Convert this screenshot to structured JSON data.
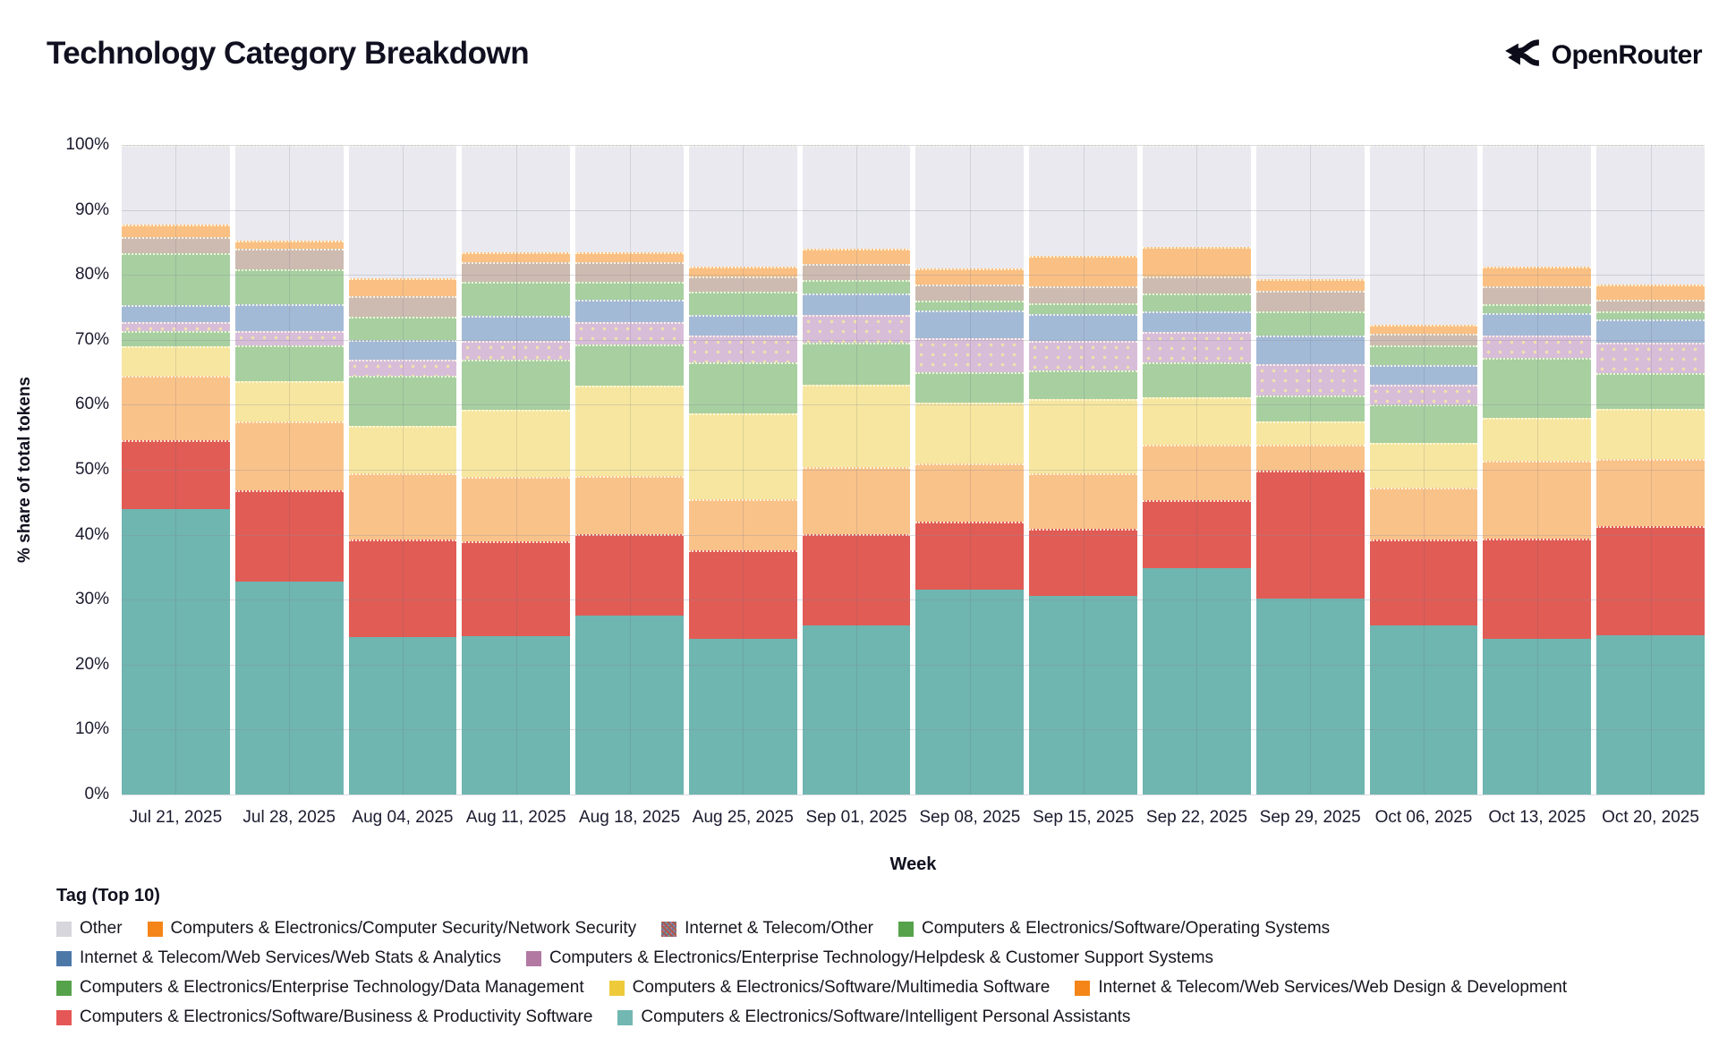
{
  "header": {
    "title": "Technology Category Breakdown",
    "brand": "OpenRouter"
  },
  "chart_data": {
    "type": "bar",
    "stacked": true,
    "unit": "% share of total tokens",
    "title": "Technology Category Breakdown",
    "xlabel": "Week",
    "ylabel": "% share of total tokens",
    "ylim": [
      0,
      100
    ],
    "yticks": [
      "0%",
      "10%",
      "20%",
      "30%",
      "40%",
      "50%",
      "60%",
      "70%",
      "80%",
      "90%",
      "100%"
    ],
    "grid": true,
    "legend_title": "Tag (Top 10)",
    "legend_position": "bottom",
    "categories": [
      "Jul 21, 2025",
      "Jul 28, 2025",
      "Aug 04, 2025",
      "Aug 11, 2025",
      "Aug 18, 2025",
      "Aug 25, 2025",
      "Sep 01, 2025",
      "Sep 08, 2025",
      "Sep 15, 2025",
      "Sep 22, 2025",
      "Sep 29, 2025",
      "Oct 06, 2025",
      "Oct 13, 2025",
      "Oct 20, 2025"
    ],
    "series": [
      {
        "id": "ipa",
        "name": "Computers & Electronics/Software/Intelligent Personal Assistants",
        "bar_color": "#6FB5B0",
        "legend_color": "#72B7B2",
        "pattern": "none",
        "values": [
          44.0,
          32.8,
          24.2,
          24.4,
          27.5,
          24.0,
          26.1,
          31.6,
          30.6,
          34.9,
          30.2,
          26.1,
          24.0,
          24.5
        ]
      },
      {
        "id": "bps",
        "name": "Computers & Electronics/Software/Business & Productivity Software",
        "bar_color": "#E05C55",
        "legend_color": "#E45756",
        "pattern": "none",
        "values": [
          10.5,
          14.0,
          15.0,
          14.6,
          12.6,
          13.6,
          14.0,
          10.4,
          10.3,
          10.4,
          19.7,
          13.1,
          15.4,
          16.8
        ]
      },
      {
        "id": "wdd",
        "name": "Internet & Telecom/Web Services/Web Design & Development",
        "bar_color": "#F9C289",
        "legend_color": "#F58518",
        "pattern": "none",
        "values": [
          10.0,
          10.7,
          10.2,
          9.9,
          9.0,
          7.8,
          10.3,
          8.9,
          8.5,
          8.6,
          4.0,
          8.0,
          12.0,
          10.3
        ]
      },
      {
        "id": "mms",
        "name": "Computers & Electronics/Software/Multimedia Software",
        "bar_color": "#F6E69F",
        "legend_color": "#EECA3B",
        "pattern": "none",
        "values": [
          4.5,
          6.1,
          7.3,
          10.3,
          13.8,
          13.3,
          12.7,
          9.4,
          11.5,
          7.3,
          3.5,
          6.9,
          6.6,
          7.8
        ]
      },
      {
        "id": "dm",
        "name": "Computers & Electronics/Enterprise Technology/Data Management",
        "bar_color": "#A7CFA0",
        "legend_color": "#56A24B",
        "pattern": "none",
        "values": [
          2.3,
          5.6,
          7.8,
          7.8,
          6.4,
          7.9,
          6.4,
          4.7,
          4.4,
          5.4,
          4.0,
          6.0,
          9.2,
          5.5
        ]
      },
      {
        "id": "hd",
        "name": "Computers & Electronics/Enterprise Technology/Helpdesk & Customer Support Systems",
        "bar_color": "#D8BDD9",
        "legend_color": "#B279A2",
        "pattern": "dots",
        "values": [
          1.5,
          2.1,
          2.5,
          2.8,
          3.5,
          4.1,
          4.4,
          5.2,
          4.6,
          4.6,
          4.9,
          3.0,
          3.5,
          4.6
        ]
      },
      {
        "id": "wsa",
        "name": "Internet & Telecom/Web Services/Web Stats & Analytics",
        "bar_color": "#A3BAD6",
        "legend_color": "#4C78A8",
        "pattern": "none",
        "values": [
          2.6,
          4.2,
          3.0,
          3.9,
          3.4,
          3.2,
          3.2,
          4.3,
          4.1,
          3.2,
          4.4,
          3.0,
          3.4,
          3.7
        ]
      },
      {
        "id": "os",
        "name": "Computers & Electronics/Software/Operating Systems",
        "bar_color": "#A7CFA0",
        "legend_color": "#56A24B",
        "pattern": "none",
        "values": [
          7.9,
          5.3,
          3.6,
          5.3,
          2.8,
          3.5,
          2.1,
          1.5,
          1.6,
          2.7,
          3.7,
          3.0,
          1.4,
          1.2
        ]
      },
      {
        "id": "it_other",
        "name": "Internet & Telecom/Other",
        "bar_color": "#CDBBB1",
        "legend_color": "noise",
        "pattern": "none",
        "values": [
          2.5,
          3.2,
          3.2,
          2.9,
          2.9,
          2.3,
          2.5,
          2.5,
          2.7,
          2.6,
          3.2,
          1.8,
          2.8,
          1.8
        ]
      },
      {
        "id": "net_sec",
        "name": "Computers & Electronics/Computer Security/Network Security",
        "bar_color": "#FAC083",
        "legend_color": "#F58518",
        "pattern": "none",
        "values": [
          2.0,
          1.3,
          2.7,
          1.6,
          1.6,
          1.6,
          2.3,
          2.5,
          4.7,
          4.6,
          1.8,
          1.4,
          3.0,
          2.3
        ]
      },
      {
        "id": "other",
        "name": "Other",
        "bar_color": "#E9E9EF",
        "legend_color": "#D6D6DC",
        "pattern": "none",
        "values": [
          12.2,
          14.7,
          20.5,
          16.5,
          16.5,
          18.7,
          16.0,
          19.0,
          17.0,
          15.7,
          20.6,
          27.7,
          18.7,
          21.5
        ]
      }
    ],
    "legend_rows": [
      [
        "other",
        "net_sec",
        "it_other",
        "os"
      ],
      [
        "wsa",
        "hd"
      ],
      [
        "dm",
        "mms",
        "wdd"
      ],
      [
        "bps",
        "ipa"
      ]
    ]
  }
}
